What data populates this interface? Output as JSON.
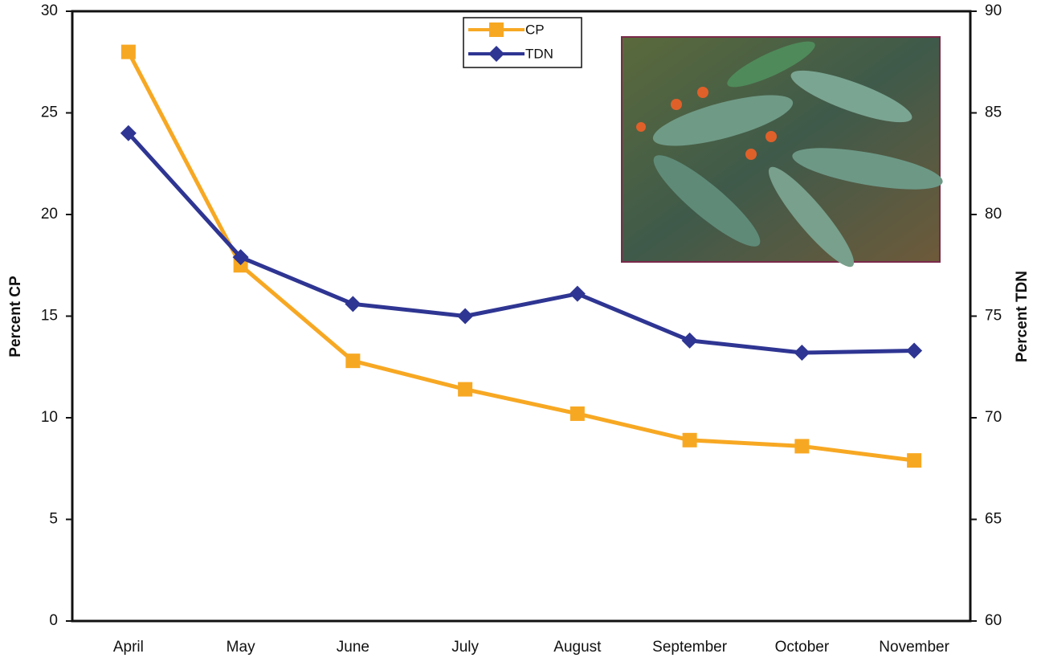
{
  "chart_data": {
    "type": "line",
    "categories": [
      "April",
      "May",
      "June",
      "July",
      "August",
      "September",
      "October",
      "November"
    ],
    "series": [
      {
        "name": "CP",
        "color": "#f7a823",
        "marker": "square",
        "values": [
          28.0,
          17.5,
          12.8,
          11.4,
          10.2,
          8.9,
          8.6,
          7.9
        ]
      },
      {
        "name": "TDN",
        "color": "#2e3592",
        "marker": "diamond",
        "axis": "y2",
        "values": [
          84.0,
          77.9,
          75.6,
          75.0,
          76.1,
          73.8,
          73.2,
          73.3
        ]
      }
    ],
    "ylabel": "Percent CP",
    "y2label": "Percent TDN",
    "ylim": [
      0,
      30
    ],
    "yticks": [
      0,
      5,
      10,
      15,
      20,
      25,
      30
    ],
    "y2lim": [
      60,
      90
    ],
    "y2ticks": [
      60,
      65,
      70,
      75,
      80,
      85,
      90
    ],
    "grid": false,
    "legend": "top"
  }
}
